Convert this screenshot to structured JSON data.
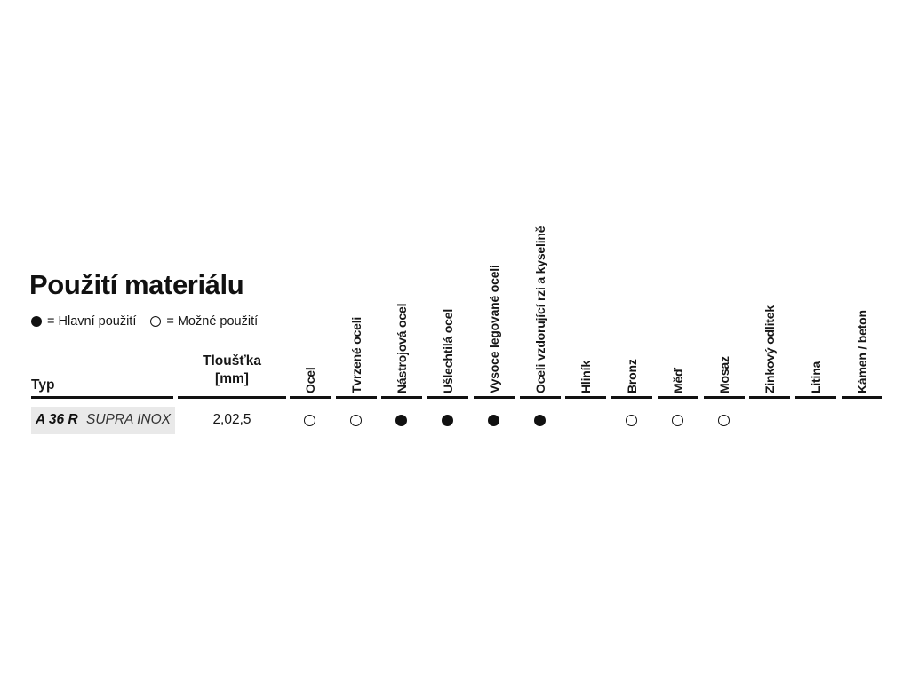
{
  "page": {
    "title": "Použití materiálu",
    "legend": {
      "main_label": "= Hlavní použití",
      "possible_label": "= Možné použití"
    }
  },
  "table": {
    "type_header": "Typ",
    "thickness_header_line1": "Tloušťka",
    "thickness_header_line2": "[mm]",
    "material_columns": [
      "Ocel",
      "Tvrzené oceli",
      "Nástrojová ocel",
      "Ušlechtilá ocel",
      "Vysoce legované oceli",
      "Oceli vzdorující rzi a kyselině",
      "Hliník",
      "Bronz",
      "Měď",
      "Mosaz",
      "Zinkový odlitek",
      "Litina",
      "Kámen / beton"
    ],
    "rows": [
      {
        "type_bold": "A 36 R",
        "type_variant": "SUPRA INOX",
        "thickness": "2,02,5",
        "usage": [
          "possible",
          "possible",
          "main",
          "main",
          "main",
          "main",
          "none",
          "possible",
          "possible",
          "possible",
          "none",
          "none",
          "none"
        ]
      }
    ]
  },
  "colors": {
    "text": "#111111",
    "row_highlight": "#e9e9e9",
    "rule": "#111111"
  }
}
